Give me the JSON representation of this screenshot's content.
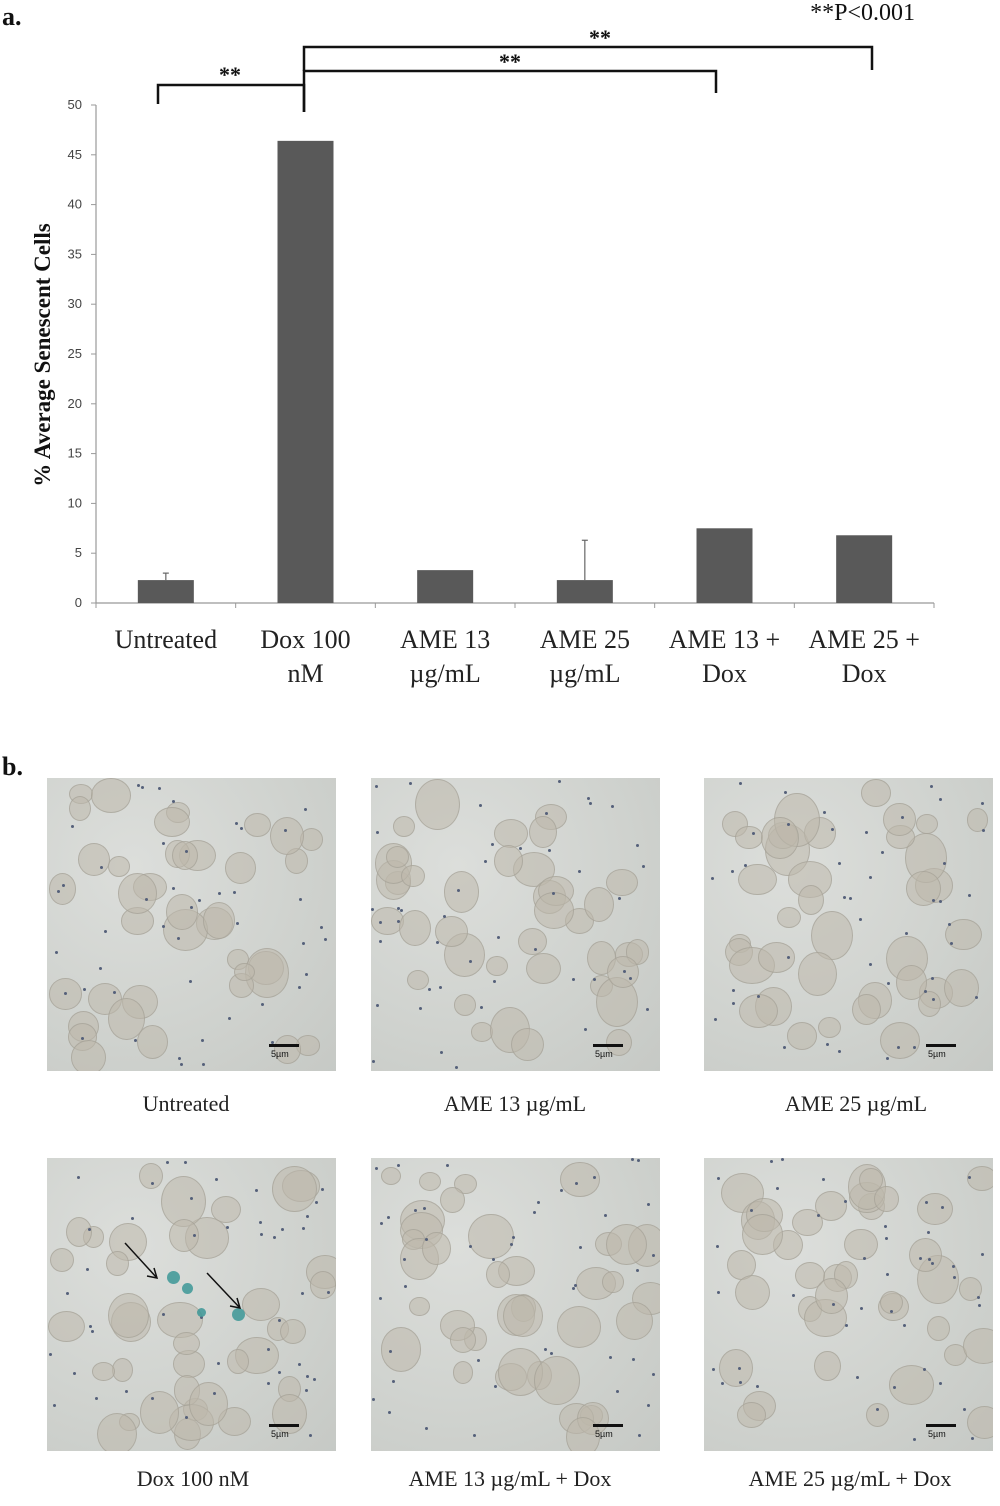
{
  "panel_a_letter": "a.",
  "panel_b_letter": "b.",
  "significance": {
    "note": "**P<0.001",
    "marker": "**"
  },
  "chart_data": {
    "type": "bar",
    "title": "",
    "xlabel": "",
    "ylabel": "% Average Senescent Cells",
    "ylim": [
      0,
      50
    ],
    "yticks": [
      0,
      5,
      10,
      15,
      20,
      25,
      30,
      35,
      40,
      45,
      50
    ],
    "categories": [
      "Untreated",
      "Dox 100 nM",
      "AME 13 µg/mL",
      "AME 25 µg/mL",
      "AME 13 + Dox",
      "AME 25 + Dox"
    ],
    "category_lines": [
      [
        "Untreated"
      ],
      [
        "Dox 100",
        "nM"
      ],
      [
        "AME 13",
        "µg/mL"
      ],
      [
        "AME 25",
        "µg/mL"
      ],
      [
        "AME 13 +",
        "Dox"
      ],
      [
        "AME 25 +",
        "Dox"
      ]
    ],
    "values": [
      2.3,
      46.4,
      3.3,
      2.3,
      7.5,
      6.8
    ],
    "error_upper": [
      0.7,
      0,
      0,
      4.0,
      0,
      0
    ],
    "bar_color": "#595959",
    "grid": false,
    "comparisons": [
      {
        "from": 0,
        "to": 1,
        "label": "**"
      },
      {
        "from": 1,
        "to": 4,
        "label": "**"
      },
      {
        "from": 1,
        "to": 5,
        "label": "**"
      }
    ]
  },
  "micrographs": [
    {
      "caption": "Untreated",
      "scale": "5µm"
    },
    {
      "caption": "AME  13 µg/mL",
      "scale": "5µm"
    },
    {
      "caption": "AME 25 µg/mL",
      "scale": "5µm"
    },
    {
      "caption": "Dox 100 nM",
      "scale": "5µm"
    },
    {
      "caption": "AME 13 µg/mL + Dox",
      "scale": "5µm"
    },
    {
      "caption": "AME 25 µg/mL + Dox",
      "scale": "5µm"
    }
  ]
}
